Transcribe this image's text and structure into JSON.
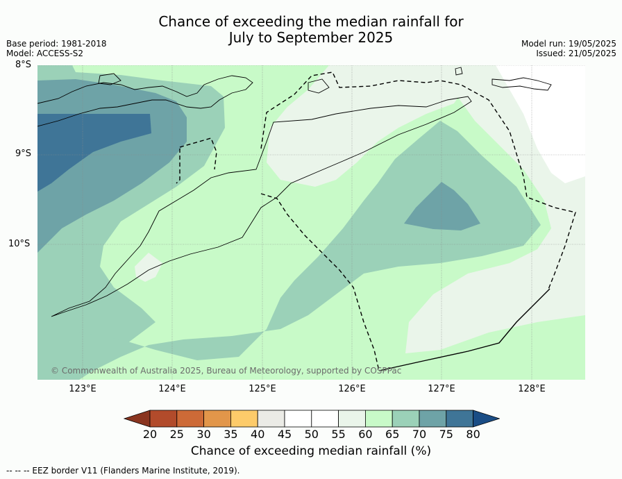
{
  "title_line1": "Chance of exceeding the median rainfall for",
  "title_line2": "July to September 2025",
  "meta_left": {
    "base_period": "Base period: 1981-2018",
    "model": "Model: ACCESS-S2"
  },
  "meta_right": {
    "model_run": "Model run: 19/05/2025",
    "issued": "Issued: 21/05/2025"
  },
  "lat_labels": [
    "8°S",
    "9°S",
    "10°S"
  ],
  "lon_labels": [
    "123°E",
    "124°E",
    "125°E",
    "126°E",
    "127°E",
    "128°E"
  ],
  "copyright": "© Commonwealth of Australia 2025, Bureau of Meteorology, supported by COSPPac",
  "colorbar": {
    "ticks": [
      "20",
      "25",
      "30",
      "35",
      "40",
      "45",
      "50",
      "55",
      "60",
      "65",
      "70",
      "75",
      "80"
    ],
    "colors": [
      "#8a3520",
      "#b24b2b",
      "#cd6a37",
      "#e2964a",
      "#fdcb6a",
      "#ebebe6",
      "#ffffff",
      "#ffffff",
      "#eaf5ea",
      "#c8fac8",
      "#9bd1b8",
      "#6ea3a7",
      "#3f7597",
      "#1a4d85"
    ],
    "title": "Chance of exceeding median rainfall (%)"
  },
  "footnote": "--  --  -- EEZ border V11 (Flanders Marine Institute, 2019)."
}
